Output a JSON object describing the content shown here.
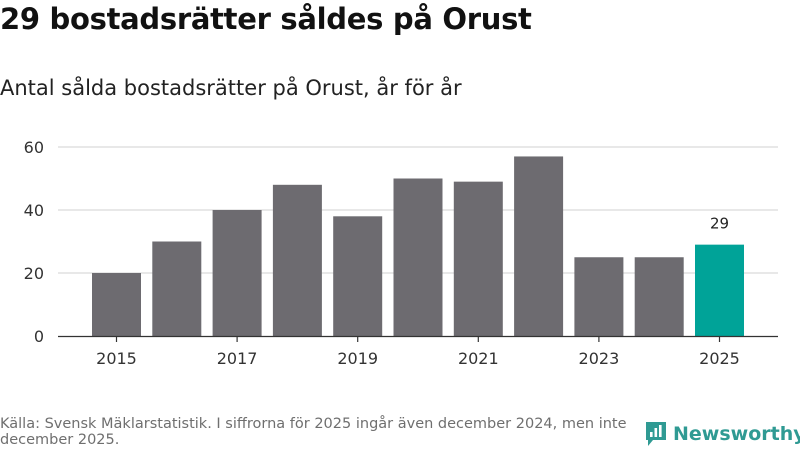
{
  "title": "29 bostadsrätter såldes på Orust",
  "subtitle": "Antal sålda bostadsrätter på Orust, år för år",
  "colors": {
    "bar": "#6d6b70",
    "highlight": "#00a398",
    "grid": "#d9d9d9",
    "axis": "#333333",
    "brand": "#2f9a93"
  },
  "chart_data": {
    "type": "bar",
    "title": "",
    "xlabel": "",
    "ylabel": "",
    "categories": [
      "2015",
      "2016",
      "2017",
      "2018",
      "2019",
      "2020",
      "2021",
      "2022",
      "2023",
      "2024",
      "2025"
    ],
    "values": [
      20,
      30,
      40,
      48,
      38,
      50,
      49,
      57,
      25,
      25,
      29
    ],
    "x_tick_labels": [
      "2015",
      "2017",
      "2019",
      "2021",
      "2023",
      "2025"
    ],
    "y_ticks": [
      0,
      20,
      40,
      60
    ],
    "ylim": [
      0,
      60
    ],
    "grid": true,
    "highlight_category": "2025",
    "data_labels": [
      {
        "category": "2025",
        "text": "29"
      }
    ]
  },
  "footer": {
    "source": "Källa: Svensk Mäklarstatistik. I siffrorna för 2025 ingår även december 2024, men inte december 2025."
  },
  "brand": {
    "name": "Newsworthy",
    "icon": "newsworthy-logo-icon"
  }
}
